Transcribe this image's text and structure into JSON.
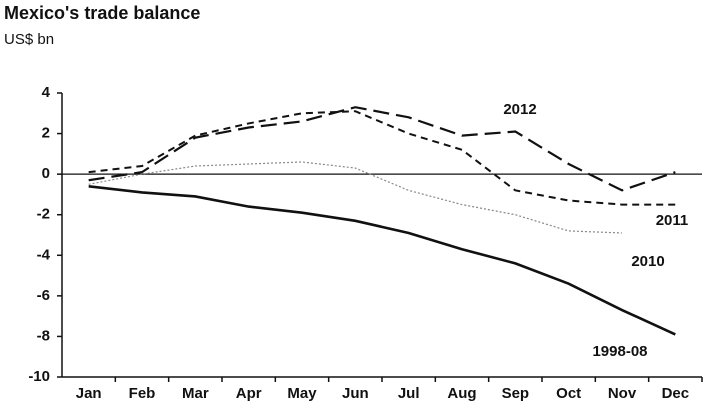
{
  "chart_data": {
    "type": "line",
    "title": "Mexico's trade balance",
    "subtitle": "US$ bn",
    "categories": [
      "Jan",
      "Feb",
      "Mar",
      "Apr",
      "May",
      "Jun",
      "Jul",
      "Aug",
      "Sep",
      "Oct",
      "Nov",
      "Dec"
    ],
    "ylim": [
      -10,
      4
    ],
    "yticks": [
      -10,
      -8,
      -6,
      -4,
      -2,
      0,
      2,
      4
    ],
    "series": [
      {
        "name": "2012",
        "color": "#111111",
        "dash": "16 7",
        "width": 2.2,
        "values": [
          -0.3,
          0.1,
          1.8,
          2.3,
          2.6,
          3.3,
          2.8,
          1.9,
          2.1,
          0.5,
          -0.8,
          0.1
        ]
      },
      {
        "name": "2011",
        "color": "#111111",
        "dash": "7 5",
        "width": 2,
        "values": [
          0.1,
          0.4,
          1.9,
          2.5,
          3.0,
          3.1,
          2.0,
          1.2,
          -0.8,
          -1.3,
          -1.5,
          -1.5
        ]
      },
      {
        "name": "2010",
        "color": "#888888",
        "dash": "2 2",
        "width": 1.2,
        "values": [
          -0.5,
          0.0,
          0.4,
          0.5,
          0.6,
          0.3,
          -0.8,
          -1.5,
          -2.0,
          -2.8,
          -2.9,
          null
        ]
      },
      {
        "name": "1998-08",
        "color": "#111111",
        "dash": "none",
        "width": 2.6,
        "values": [
          -0.6,
          -0.9,
          -1.1,
          -1.6,
          -1.9,
          -2.3,
          -2.9,
          -3.7,
          -4.4,
          -5.4,
          -6.7,
          -7.9
        ]
      }
    ]
  }
}
